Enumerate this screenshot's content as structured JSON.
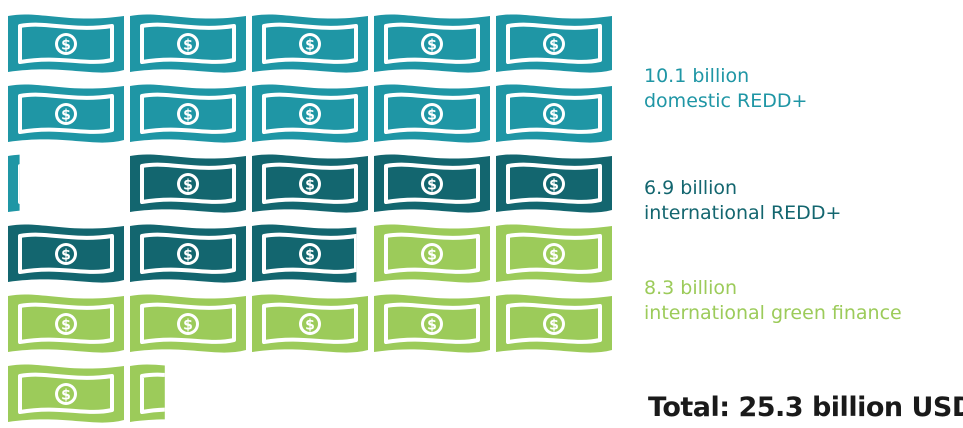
{
  "colors": {
    "domestic": "#1f96a5",
    "international": "#13666f",
    "green": "#9ccb5a",
    "background": "#ffffff"
  },
  "icon": "dollar-bill-icon",
  "chart_data": {
    "type": "pictogram",
    "unit_note": "each bill icon represents ~1 billion USD",
    "series": [
      {
        "name": "domestic REDD+",
        "value": 10.1,
        "value_label": "10.1 billion",
        "label": "domestic REDD+",
        "color": "#1f96a5"
      },
      {
        "name": "international REDD+",
        "value": 6.9,
        "value_label": "6.9 billion",
        "label": "international REDD+",
        "color": "#13666f"
      },
      {
        "name": "international green finance",
        "value": 8.3,
        "value_label": "8.3 billion",
        "label": "international green finance",
        "color": "#9ccb5a"
      }
    ],
    "total_label": "Total: 25.3 billion USD"
  }
}
